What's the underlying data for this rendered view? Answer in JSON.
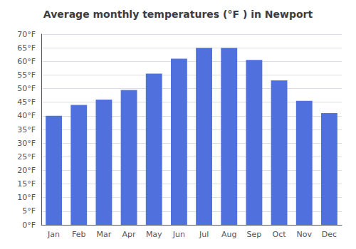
{
  "chart_data": {
    "type": "bar",
    "title": "Average monthly temperatures (°F ) in Newport",
    "categories": [
      "Jan",
      "Feb",
      "Mar",
      "Apr",
      "May",
      "Jun",
      "Jul",
      "Aug",
      "Sep",
      "Oct",
      "Nov",
      "Dec"
    ],
    "values": [
      40,
      44,
      46,
      49.5,
      55.5,
      61,
      65,
      65,
      60.5,
      53,
      45.5,
      41
    ],
    "ylim": [
      0,
      70
    ],
    "yticks": [
      {
        "value": 0,
        "label": "0°F"
      },
      {
        "value": 5,
        "label": "5°F"
      },
      {
        "value": 10,
        "label": "10°F"
      },
      {
        "value": 15,
        "label": "15°F"
      },
      {
        "value": 20,
        "label": "20°F"
      },
      {
        "value": 25,
        "label": "25°F"
      },
      {
        "value": 30,
        "label": "30°F"
      },
      {
        "value": 35,
        "label": "35°F"
      },
      {
        "value": 40,
        "label": "40°F"
      },
      {
        "value": 45,
        "label": "45°F"
      },
      {
        "value": 50,
        "label": "50°F"
      },
      {
        "value": 55,
        "label": "55°F"
      },
      {
        "value": 60,
        "label": "60°F"
      },
      {
        "value": 65,
        "label": "65°F"
      },
      {
        "value": 70,
        "label": "70°F"
      }
    ],
    "grid": true
  }
}
